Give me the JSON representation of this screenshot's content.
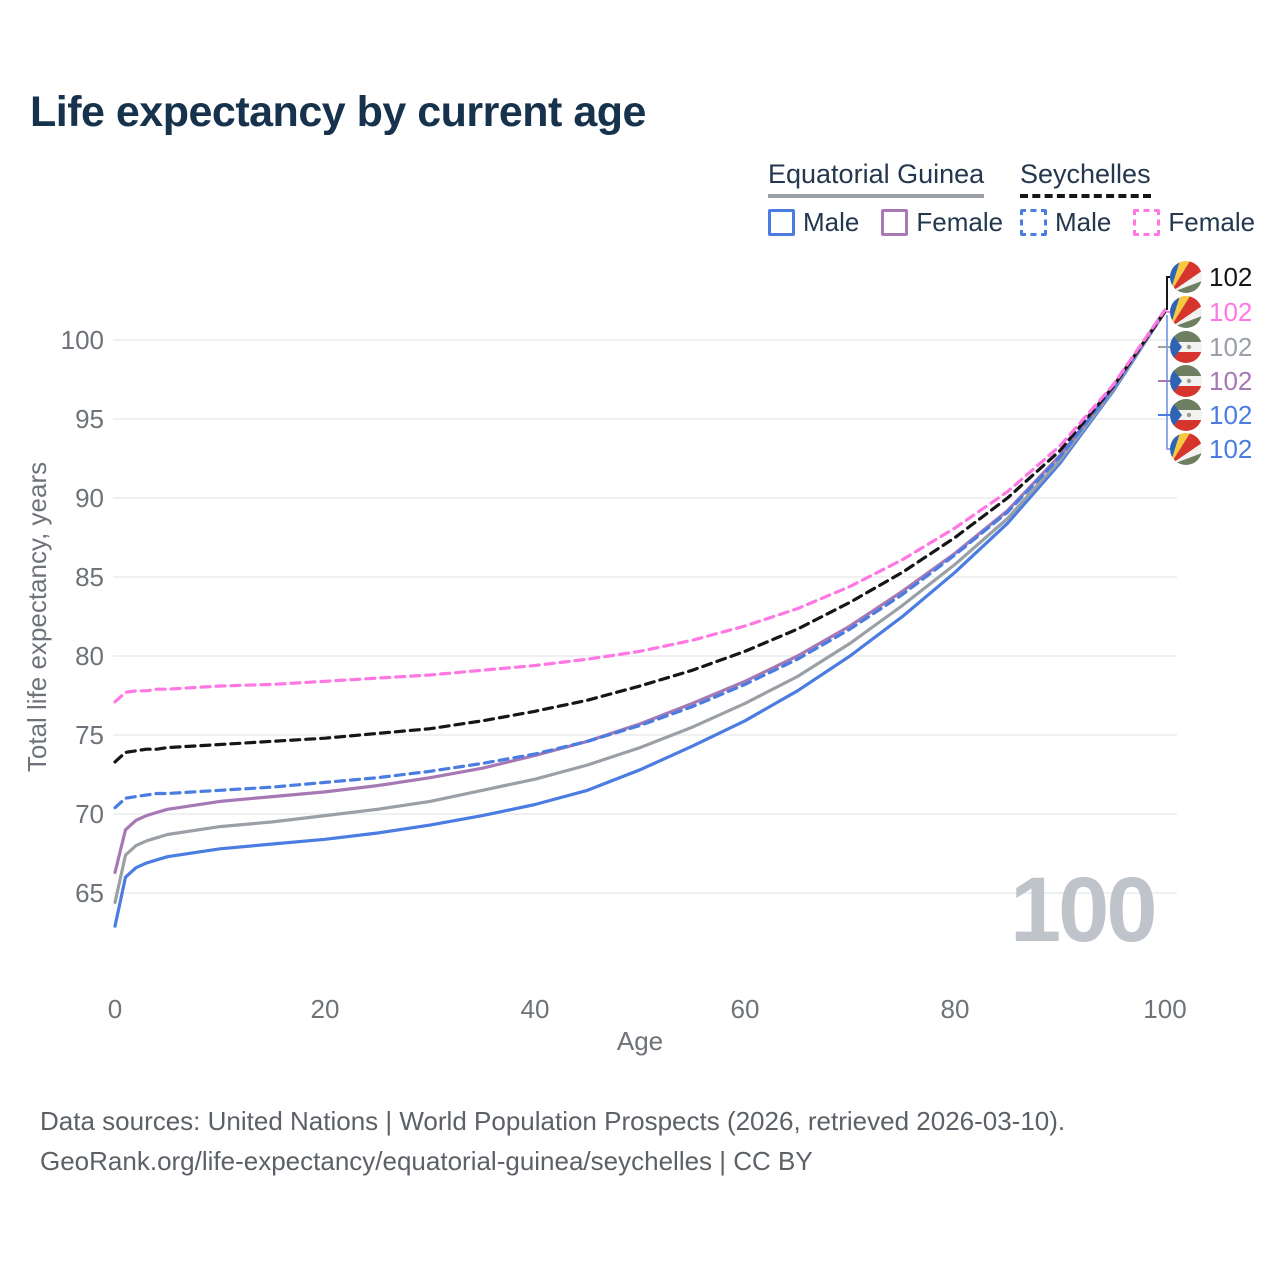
{
  "page": {
    "title": "Life expectancy by current age",
    "watermark": "100"
  },
  "legend": {
    "groups": [
      {
        "country": "Equatorial Guinea",
        "line_style": "solid",
        "line_color": "#9aa0a6",
        "items": [
          {
            "label": "Male",
            "color": "#4a7ce1",
            "style": "solid"
          },
          {
            "label": "Female",
            "color": "#a679b5",
            "style": "solid"
          }
        ]
      },
      {
        "country": "Seychelles",
        "line_style": "dashed",
        "line_color": "#151618",
        "items": [
          {
            "label": "Male",
            "color": "#4a7ce1",
            "style": "dashed"
          },
          {
            "label": "Female",
            "color": "#ff77e3",
            "style": "dashed"
          }
        ]
      }
    ]
  },
  "chart_data": {
    "type": "line",
    "title": "Life expectancy by current age",
    "xlabel": "Age",
    "ylabel": "Total life expectancy, years",
    "xlim": [
      0,
      100
    ],
    "ylim": [
      62,
      103
    ],
    "xticks": [
      0,
      20,
      40,
      60,
      80,
      100
    ],
    "yticks": [
      65,
      70,
      75,
      80,
      85,
      90,
      95,
      100
    ],
    "grid": "horizontal-only",
    "legend_position": "top-right",
    "x_ages": [
      0,
      1,
      2,
      3,
      4,
      5,
      10,
      15,
      20,
      25,
      30,
      35,
      40,
      45,
      50,
      55,
      60,
      65,
      70,
      75,
      80,
      85,
      90,
      95,
      100
    ],
    "series": [
      {
        "name": "Equatorial Guinea Male",
        "country": "Equatorial Guinea",
        "sex": "Male",
        "color": "#4a7ce1",
        "style": "solid",
        "values": [
          62.9,
          66.0,
          66.6,
          66.9,
          67.1,
          67.3,
          67.8,
          68.1,
          68.4,
          68.8,
          69.3,
          69.9,
          70.6,
          71.5,
          72.8,
          74.3,
          75.9,
          77.8,
          80.0,
          82.5,
          85.3,
          88.4,
          92.2,
          96.7,
          101.8
        ]
      },
      {
        "name": "Equatorial Guinea Both sexes",
        "country": "Equatorial Guinea",
        "sex": "Both sexes",
        "color": "#9aa0a6",
        "style": "solid",
        "values": [
          64.4,
          67.4,
          68.0,
          68.3,
          68.5,
          68.7,
          69.2,
          69.5,
          69.9,
          70.3,
          70.8,
          71.5,
          72.2,
          73.1,
          74.2,
          75.5,
          77.0,
          78.7,
          80.8,
          83.2,
          85.8,
          88.7,
          92.4,
          96.8,
          101.8
        ]
      },
      {
        "name": "Equatorial Guinea Female",
        "country": "Equatorial Guinea",
        "sex": "Female",
        "color": "#a679b5",
        "style": "solid",
        "values": [
          66.3,
          69.0,
          69.6,
          69.9,
          70.1,
          70.3,
          70.8,
          71.1,
          71.4,
          71.8,
          72.3,
          72.9,
          73.7,
          74.6,
          75.7,
          77.0,
          78.4,
          80.0,
          81.9,
          84.1,
          86.5,
          89.2,
          92.7,
          96.9,
          101.9
        ]
      },
      {
        "name": "Seychelles Male",
        "country": "Seychelles",
        "sex": "Male",
        "color": "#4a7ce1",
        "style": "dashed",
        "values": [
          70.4,
          71.0,
          71.1,
          71.2,
          71.3,
          71.3,
          71.5,
          71.7,
          72.0,
          72.3,
          72.7,
          73.2,
          73.8,
          74.6,
          75.6,
          76.8,
          78.2,
          79.8,
          81.7,
          83.9,
          86.4,
          89.1,
          92.6,
          96.9,
          101.9
        ]
      },
      {
        "name": "Seychelles Both sexes",
        "country": "Seychelles",
        "sex": "Both sexes",
        "color": "#151618",
        "style": "dashed",
        "values": [
          73.3,
          73.9,
          74.0,
          74.1,
          74.1,
          74.2,
          74.4,
          74.6,
          74.8,
          75.1,
          75.4,
          75.9,
          76.5,
          77.2,
          78.1,
          79.1,
          80.3,
          81.7,
          83.4,
          85.3,
          87.5,
          90.0,
          93.0,
          97.0,
          101.8
        ]
      },
      {
        "name": "Seychelles Female",
        "country": "Seychelles",
        "sex": "Female",
        "color": "#ff77e3",
        "style": "dashed",
        "values": [
          77.1,
          77.7,
          77.8,
          77.8,
          77.9,
          77.9,
          78.1,
          78.2,
          78.4,
          78.6,
          78.8,
          79.1,
          79.4,
          79.8,
          80.3,
          81.0,
          81.9,
          83.0,
          84.4,
          86.1,
          88.1,
          90.4,
          93.3,
          97.1,
          101.9
        ]
      }
    ]
  },
  "end_labels": [
    {
      "flag": "sc",
      "series": "Seychelles Both sexes",
      "value": "102",
      "color": "#151618"
    },
    {
      "flag": "sc",
      "series": "Seychelles Female",
      "value": "102",
      "color": "#ff77e3"
    },
    {
      "flag": "gq",
      "series": "Equatorial Guinea Both sexes",
      "value": "102",
      "color": "#9aa0a6"
    },
    {
      "flag": "gq",
      "series": "Equatorial Guinea Female",
      "value": "102",
      "color": "#a679b5"
    },
    {
      "flag": "gq",
      "series": "Equatorial Guinea Male",
      "value": "102",
      "color": "#4a7ce1"
    },
    {
      "flag": "sc",
      "series": "Seychelles Male",
      "value": "102",
      "color": "#4a7ce1"
    }
  ],
  "flag_colors": {
    "blue": "#2f64b5",
    "yellow": "#f6c93e",
    "red": "#d5352c",
    "white": "#f2f3f1",
    "green": "#6d7f60",
    "emblem": "#98a084"
  },
  "footer": {
    "line1": "Data sources: United Nations | World Population Prospects (2026, retrieved 2026-03-10).",
    "line2": "GeoRank.org/life-expectancy/equatorial-guinea/seychelles | CC BY"
  }
}
